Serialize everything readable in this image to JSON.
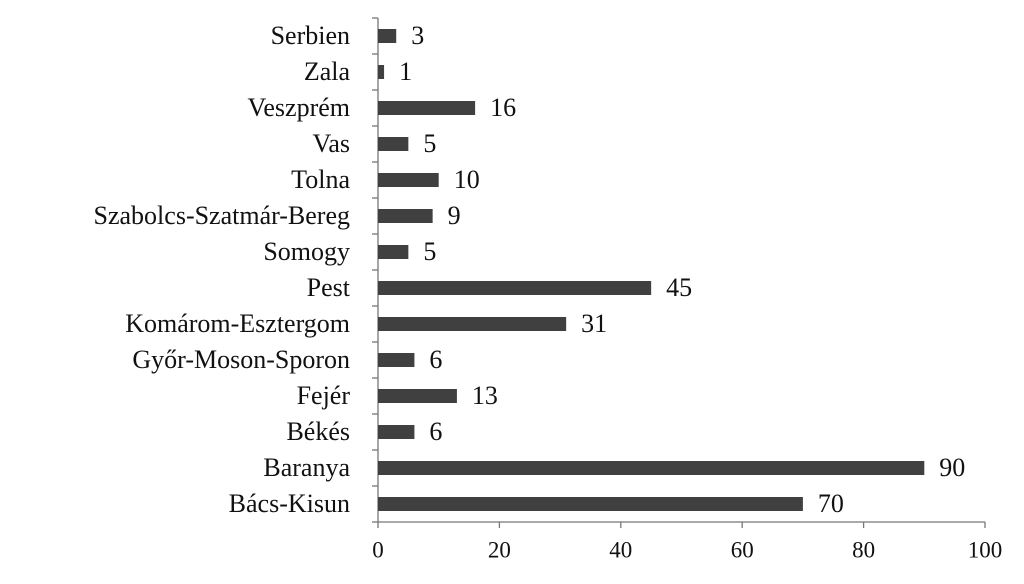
{
  "chart_data": {
    "type": "hbar",
    "categories": [
      "Serbien",
      "Zala",
      "Veszprém",
      "Vas",
      "Tolna",
      "Szabolcs-Szatmár-Bereg",
      "Somogy",
      "Pest",
      "Komárom-Esztergom",
      "Győr-Moson-Sporon",
      "Fejér",
      "Békés",
      "Baranya",
      "Bács-Kisun"
    ],
    "values": [
      3,
      1,
      16,
      5,
      10,
      9,
      5,
      45,
      31,
      6,
      13,
      6,
      90,
      70
    ],
    "color": "#404040",
    "xlim": [
      0,
      100
    ],
    "xticks": [
      0,
      20,
      40,
      60,
      80,
      100
    ],
    "grid": false
  }
}
